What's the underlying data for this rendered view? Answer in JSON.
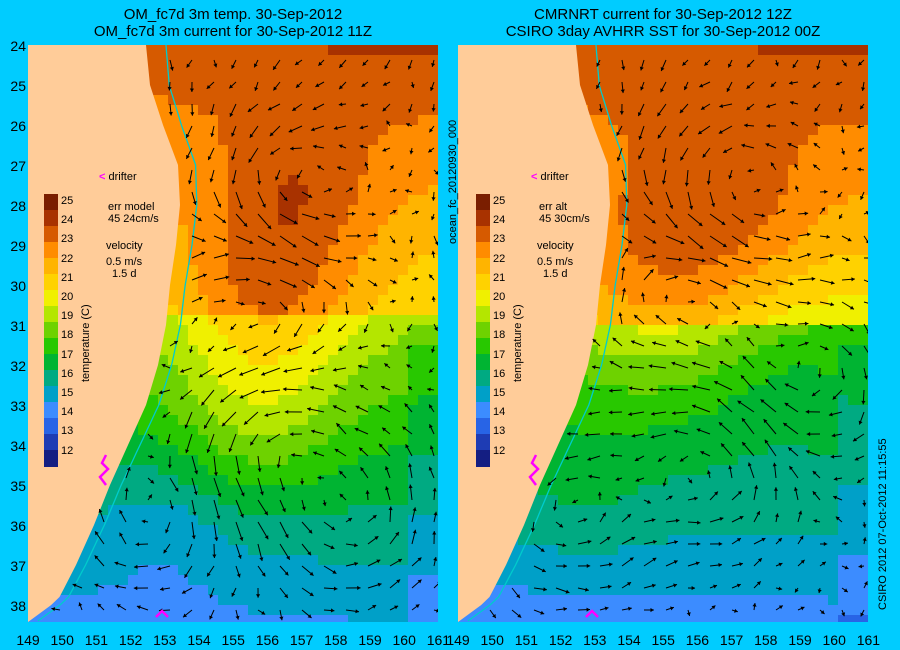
{
  "panels": [
    {
      "id": "left",
      "title_line1": "OM_fc7d 3m temp. 30-Sep-2012",
      "title_line2": "OM_fc7d 3m current for 30-Sep-2012 11Z",
      "drifter_label": "drifter",
      "error_label": "err model",
      "error_value": "45 24cm/s",
      "velocity_label": "velocity",
      "velocity_scale": "0.5 m/s",
      "velocity_days": "1.5 d"
    },
    {
      "id": "right",
      "title_line1": "CMRNRT current for 30-Sep-2012 12Z",
      "title_line2": "CSIRO 3day AVHRR SST for 30-Sep-2012 00Z",
      "drifter_label": "drifter",
      "error_label": "err alt",
      "error_value": "45 30cm/s",
      "velocity_label": "velocity",
      "velocity_scale": "0.5 m/s",
      "velocity_days": "1.5 d"
    }
  ],
  "axes": {
    "lat_ticks": [
      "24",
      "25",
      "26",
      "27",
      "28",
      "29",
      "30",
      "31",
      "32",
      "33",
      "34",
      "35",
      "36",
      "37",
      "38"
    ],
    "lon_ticks": [
      "149",
      "150",
      "151",
      "152",
      "153",
      "154",
      "155",
      "156",
      "157",
      "158",
      "159",
      "160",
      "161"
    ],
    "lat_range": [
      24,
      38.4
    ],
    "lon_range": [
      149,
      161
    ]
  },
  "colorbar": {
    "title": "temperature (C)",
    "ticks": [
      "25",
      "24",
      "23",
      "22",
      "21",
      "20",
      "19",
      "18",
      "17",
      "16",
      "15",
      "14",
      "13",
      "12"
    ],
    "colors": [
      "#7a1e00",
      "#a83200",
      "#d65a00",
      "#ff8c00",
      "#ffb400",
      "#ffd200",
      "#f0f000",
      "#b4e600",
      "#6ed200",
      "#28c800",
      "#00b432",
      "#00aa82",
      "#00a0c8",
      "#3c8cff",
      "#2864e6",
      "#1e3cb4",
      "#141e82"
    ]
  },
  "side_id": "ocean_fc_20120930_000",
  "credit": "CSIRO 2012   07-Oct-2012 11:15:55",
  "colors": {
    "background": "#00ccff",
    "land": "#ffcc99",
    "coast_line": "#00cccc",
    "drifter": "#ff00ff"
  }
}
